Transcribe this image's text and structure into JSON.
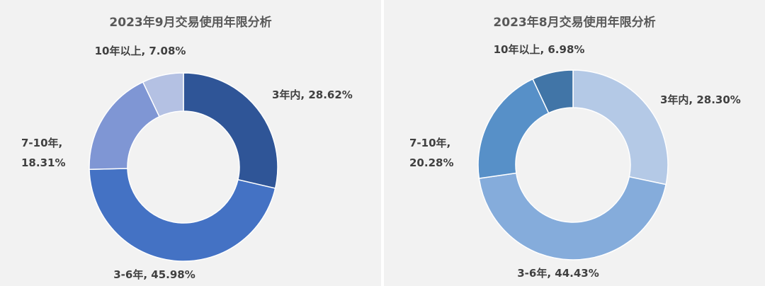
{
  "chart_data": [
    {
      "type": "pie",
      "title": "2023年9月交易使用年限分析",
      "categories": [
        "3年内",
        "3-6年",
        "7-10年",
        "10年以上"
      ],
      "values": [
        28.62,
        45.98,
        18.31,
        7.08
      ],
      "value_labels": [
        "28.62%",
        "45.98%",
        "18.31%",
        "7.08%"
      ],
      "colors": [
        "#2f5597",
        "#4472c4",
        "#7f96d4",
        "#b4c1e3"
      ],
      "donut": true,
      "legend": "none"
    },
    {
      "type": "pie",
      "title": "2023年8月交易使用年限分析",
      "categories": [
        "3年内",
        "3-6年",
        "7-10年",
        "10年以上"
      ],
      "values": [
        28.3,
        44.43,
        20.28,
        6.98
      ],
      "value_labels": [
        "28.30%",
        "44.43%",
        "20.28%",
        "6.98%"
      ],
      "colors": [
        "#b4c9e6",
        "#85acdb",
        "#5790c8",
        "#4175a7"
      ],
      "donut": true,
      "legend": "none"
    }
  ]
}
